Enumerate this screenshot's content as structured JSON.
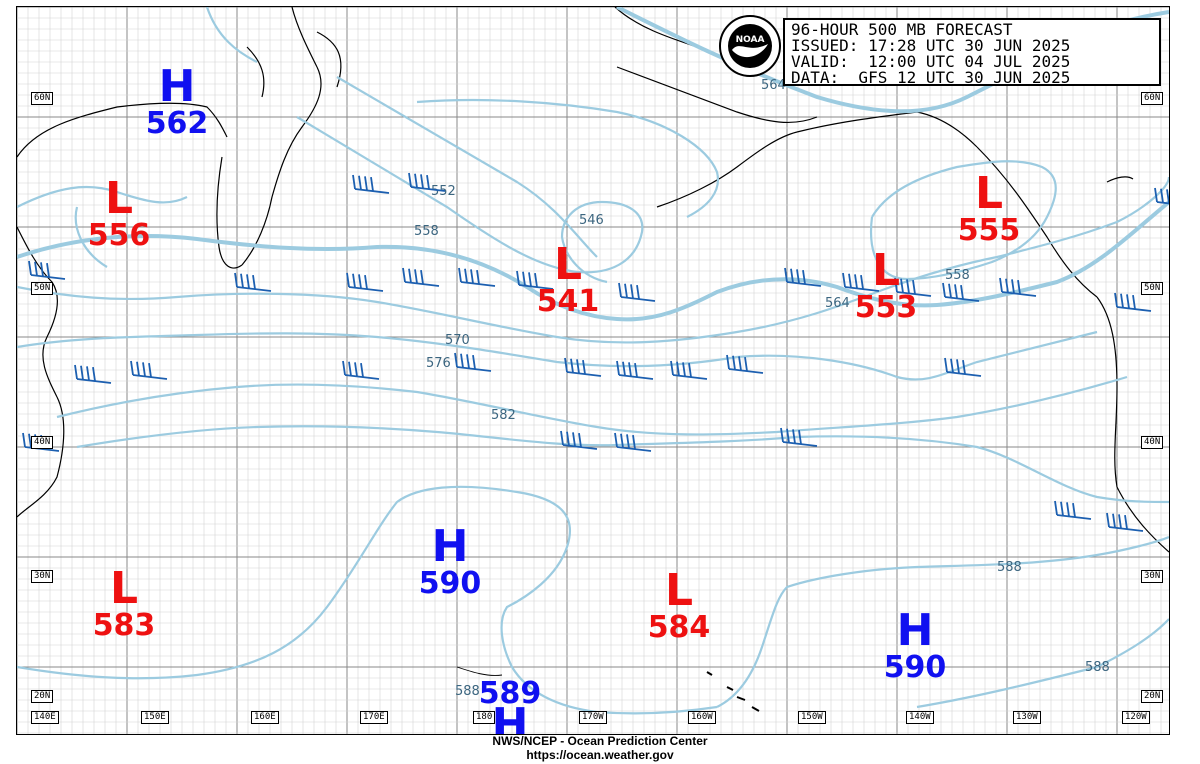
{
  "title_box": {
    "line1": "96-HOUR 500 MB FORECAST",
    "line2": "ISSUED: 17:28 UTC 30 JUN 2025",
    "line3": "VALID:  12:00 UTC 04 JUL 2025",
    "line4": "DATA:  GFS 12 UTC 30 JUN 2025"
  },
  "footer": {
    "line1": "NWS/NCEP - Ocean Prediction Center",
    "line2": "https://ocean.weather.gov"
  },
  "lat_labels": [
    "60N",
    "50N",
    "40N",
    "30N",
    "20N"
  ],
  "lon_labels": [
    "140E",
    "150E",
    "160E",
    "170E",
    "180",
    "170W",
    "160W",
    "150W",
    "140W",
    "130W",
    "120W"
  ],
  "pressure_centers": [
    {
      "type": "H",
      "value": "562"
    },
    {
      "type": "L",
      "value": "556"
    },
    {
      "type": "L",
      "value": "541"
    },
    {
      "type": "L",
      "value": "553"
    },
    {
      "type": "L",
      "value": "555"
    },
    {
      "type": "H",
      "value": "590"
    },
    {
      "type": "L",
      "value": "583"
    },
    {
      "type": "L",
      "value": "584"
    },
    {
      "type": "H",
      "value": "590"
    },
    {
      "type": "H",
      "value": "589"
    }
  ],
  "contour_labels": [
    "564",
    "558",
    "546",
    "552",
    "564",
    "558",
    "570",
    "576",
    "582",
    "588",
    "588",
    "588"
  ],
  "colors": {
    "contour": "#9ccbe0",
    "contour_text": "#3c6680",
    "high": "#1010f0",
    "low": "#ee1111",
    "wind_barb": "#1c5fb0",
    "coastline": "#000000",
    "grid": "#b8b8b8"
  },
  "logo_icon": "noaa-logo"
}
